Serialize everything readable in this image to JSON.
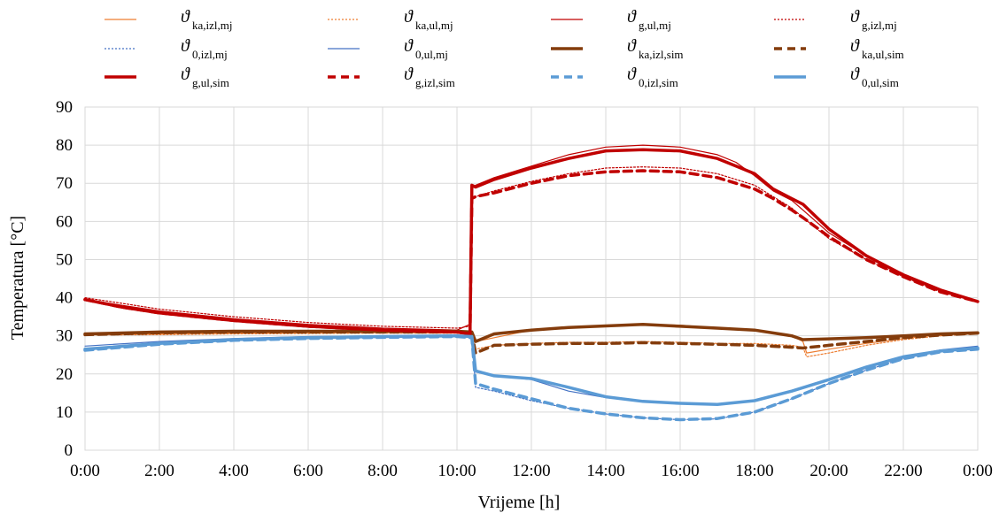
{
  "chart_data": {
    "type": "line",
    "title": "",
    "xlabel": "Vrijeme [h]",
    "ylabel": "Temperatura  [°C]",
    "xlim": [
      0,
      24
    ],
    "ylim": [
      0,
      90
    ],
    "x_tick_labels": [
      "0:00",
      "2:00",
      "4:00",
      "6:00",
      "8:00",
      "10:00",
      "12:00",
      "14:00",
      "16:00",
      "18:00",
      "20:00",
      "22:00",
      "0:00"
    ],
    "y_tick_labels": [
      "0",
      "10",
      "20",
      "30",
      "40",
      "50",
      "60",
      "70",
      "80",
      "90"
    ],
    "y_ticks": [
      0,
      10,
      20,
      30,
      40,
      50,
      60,
      70,
      80,
      90
    ],
    "grid": true,
    "legend_position": "top",
    "x_unit": "hours",
    "series": [
      {
        "name_symbol": "ϑ",
        "name_subscript": "ka,izl,mj",
        "color": "#ED7D31",
        "style": "thin-solid",
        "x": [
          0,
          2,
          4,
          6,
          8,
          10,
          10.4,
          10.5,
          11,
          12,
          13,
          14,
          15,
          16,
          17,
          18,
          19,
          19.3,
          19.4,
          20,
          21,
          22,
          23,
          24
        ],
        "y": [
          30.3,
          30.5,
          30.7,
          30.8,
          30.9,
          30.9,
          30.5,
          28.5,
          29.5,
          31.5,
          32.2,
          32.6,
          33,
          32.8,
          32,
          31.5,
          30,
          28.5,
          25.5,
          26.5,
          28,
          29.3,
          30.3,
          30.8
        ]
      },
      {
        "name_symbol": "ϑ",
        "name_subscript": "ka,ul,mj",
        "color": "#ED7D31",
        "style": "thin-dotted",
        "x": [
          0,
          2,
          4,
          6,
          8,
          10,
          10.4,
          10.5,
          11,
          12,
          13,
          14,
          15,
          16,
          17,
          18,
          19,
          19.3,
          19.4,
          20,
          21,
          22,
          23,
          24
        ],
        "y": [
          30.2,
          30.3,
          30.5,
          30.6,
          30.7,
          30.7,
          30.2,
          26.5,
          27.5,
          28,
          28.3,
          28.3,
          28.5,
          28.3,
          28,
          28,
          27.5,
          27,
          24.5,
          25.5,
          27.5,
          29,
          30,
          30.5
        ]
      },
      {
        "name_symbol": "ϑ",
        "name_subscript": "g,ul,mj",
        "color": "#C00000",
        "style": "thin-solid",
        "x": [
          0,
          1,
          2,
          4,
          6,
          8,
          10,
          10.35,
          10.4,
          10.5,
          11,
          12,
          13,
          14,
          15,
          16,
          17,
          17.5,
          18,
          18.5,
          19,
          19.3,
          20,
          21,
          22,
          23,
          24
        ],
        "y": [
          39.5,
          38,
          36.5,
          34.5,
          33,
          32,
          31.5,
          33,
          69,
          69.5,
          71.5,
          74.5,
          77.5,
          79.5,
          80,
          79.5,
          77.5,
          75.5,
          72,
          68,
          65.5,
          63,
          57,
          51,
          46,
          42,
          39.2
        ]
      },
      {
        "name_symbol": "ϑ",
        "name_subscript": "g,izl,mj",
        "color": "#C00000",
        "style": "thin-dotted",
        "x": [
          0,
          1,
          2,
          4,
          6,
          8,
          10,
          10.35,
          10.4,
          10.5,
          11,
          12,
          13,
          14,
          15,
          16,
          17,
          17.5,
          18,
          18.5,
          19,
          19.3,
          20,
          21,
          22,
          23,
          24
        ],
        "y": [
          40,
          38.5,
          37,
          35,
          33.5,
          32.5,
          32,
          32.5,
          66,
          66.5,
          68,
          70.5,
          72.5,
          74,
          74.3,
          74,
          72.5,
          71,
          69.5,
          66.5,
          63.5,
          61,
          55.5,
          50,
          45.5,
          41.5,
          39
        ]
      },
      {
        "name_symbol": "ϑ",
        "name_subscript": "0,izl,mj",
        "color": "#4472C4",
        "style": "thin-dotted",
        "x": [
          0,
          2,
          4,
          6,
          8,
          10,
          10.4,
          10.5,
          11,
          12,
          13,
          14,
          15,
          16,
          17,
          18,
          19,
          20,
          21,
          22,
          23,
          24
        ],
        "y": [
          26.5,
          28,
          29,
          29.5,
          29.8,
          30,
          29.5,
          16.5,
          15.5,
          13,
          11,
          9.5,
          8.5,
          8,
          8.2,
          10,
          13.5,
          17.5,
          21,
          24,
          26,
          27
        ]
      },
      {
        "name_symbol": "ϑ",
        "name_subscript": "0,ul,mj",
        "color": "#4472C4",
        "style": "thin-solid",
        "x": [
          0,
          2,
          4,
          6,
          8,
          10,
          10.4,
          10.5,
          11,
          12,
          13,
          14,
          15,
          16,
          17,
          18,
          19,
          20,
          21,
          22,
          23,
          24
        ],
        "y": [
          27.3,
          28.5,
          29.3,
          29.8,
          30,
          30.2,
          29.8,
          20.5,
          19.5,
          18.5,
          15.5,
          13.8,
          12.8,
          12.3,
          12,
          13,
          15.5,
          18.5,
          21.5,
          24.5,
          26.3,
          27.3
        ]
      },
      {
        "name_symbol": "ϑ",
        "name_subscript": "ka,izl,sim",
        "color": "#843C0C",
        "style": "thick-solid",
        "x": [
          0,
          2,
          4,
          6,
          8,
          10,
          10.4,
          10.5,
          11,
          12,
          13,
          14,
          15,
          16,
          17,
          18,
          19,
          19.3,
          20,
          21,
          22,
          23,
          24
        ],
        "y": [
          30.5,
          31,
          31.2,
          31.2,
          31.2,
          31.2,
          31,
          28.5,
          30.5,
          31.5,
          32.2,
          32.6,
          33,
          32.5,
          32,
          31.5,
          30,
          29,
          29.2,
          29.5,
          30,
          30.5,
          30.8
        ]
      },
      {
        "name_symbol": "ϑ",
        "name_subscript": "ka,ul,sim",
        "color": "#843C0C",
        "style": "thick-dashed",
        "x": [
          0,
          2,
          4,
          6,
          8,
          10,
          10.4,
          10.5,
          11,
          12,
          13,
          14,
          15,
          16,
          17,
          18,
          19,
          19.3,
          20,
          21,
          22,
          23,
          24
        ],
        "y": [
          30.3,
          30.8,
          31,
          31,
          31,
          31,
          30.6,
          25.5,
          27.5,
          27.8,
          28,
          28,
          28.2,
          28,
          27.8,
          27.5,
          27,
          26.8,
          27.5,
          28.5,
          29.5,
          30.2,
          30.7
        ]
      },
      {
        "name_symbol": "ϑ",
        "name_subscript": "g,ul,sim",
        "color": "#C00000",
        "style": "thick-solid",
        "x": [
          0,
          1,
          2,
          4,
          6,
          8,
          10,
          10.35,
          10.4,
          10.5,
          11,
          12,
          13,
          14,
          15,
          16,
          17,
          17.5,
          18,
          18.5,
          19,
          19.3,
          20,
          21,
          22,
          23,
          24
        ],
        "y": [
          39.5,
          37.5,
          36,
          34,
          32.5,
          31.5,
          31,
          30.5,
          69.5,
          69,
          71,
          74,
          76.5,
          78.5,
          78.8,
          78.5,
          76.5,
          74.5,
          72.5,
          68.5,
          66,
          64.5,
          58,
          51,
          46,
          42,
          39
        ]
      },
      {
        "name_symbol": "ϑ",
        "name_subscript": "g,izl,sim",
        "color": "#C00000",
        "style": "thick-dashed",
        "x": [
          0,
          1,
          2,
          4,
          6,
          8,
          10,
          10.35,
          10.4,
          10.5,
          11,
          12,
          13,
          14,
          15,
          16,
          17,
          17.5,
          18,
          18.5,
          19,
          19.3,
          20,
          21,
          22,
          23,
          24
        ],
        "y": [
          39.5,
          37.5,
          36,
          34,
          32.5,
          31.5,
          31,
          30.5,
          66,
          66.5,
          67.5,
          70,
          72,
          73,
          73.3,
          73,
          71.5,
          70,
          68.5,
          66,
          63,
          61,
          56,
          50,
          45.5,
          41.5,
          39
        ]
      },
      {
        "name_symbol": "ϑ",
        "name_subscript": "0,izl,sim",
        "color": "#5B9BD5",
        "style": "thick-dashed",
        "x": [
          0,
          2,
          4,
          6,
          8,
          10,
          10.4,
          10.5,
          11,
          12,
          13,
          14,
          15,
          16,
          17,
          18,
          19,
          20,
          21,
          22,
          23,
          24
        ],
        "y": [
          26.2,
          27.8,
          28.8,
          29.3,
          29.6,
          29.8,
          29.5,
          17.5,
          16,
          13.5,
          11,
          9.5,
          8.5,
          8,
          8.3,
          10,
          13.5,
          17.5,
          21,
          24,
          25.8,
          26.5
        ]
      },
      {
        "name_symbol": "ϑ",
        "name_subscript": "0,ul,sim",
        "color": "#5B9BD5",
        "style": "thick-solid",
        "x": [
          0,
          2,
          4,
          6,
          8,
          10,
          10.4,
          10.5,
          11,
          12,
          13,
          14,
          15,
          16,
          17,
          18,
          19,
          20,
          21,
          22,
          23,
          24
        ],
        "y": [
          26.5,
          28,
          29,
          29.5,
          29.8,
          30,
          29.8,
          20.8,
          19.5,
          18.8,
          16.5,
          14,
          12.8,
          12.3,
          12,
          13,
          15.5,
          18.5,
          21.8,
          24.5,
          26,
          26.8
        ]
      }
    ]
  }
}
